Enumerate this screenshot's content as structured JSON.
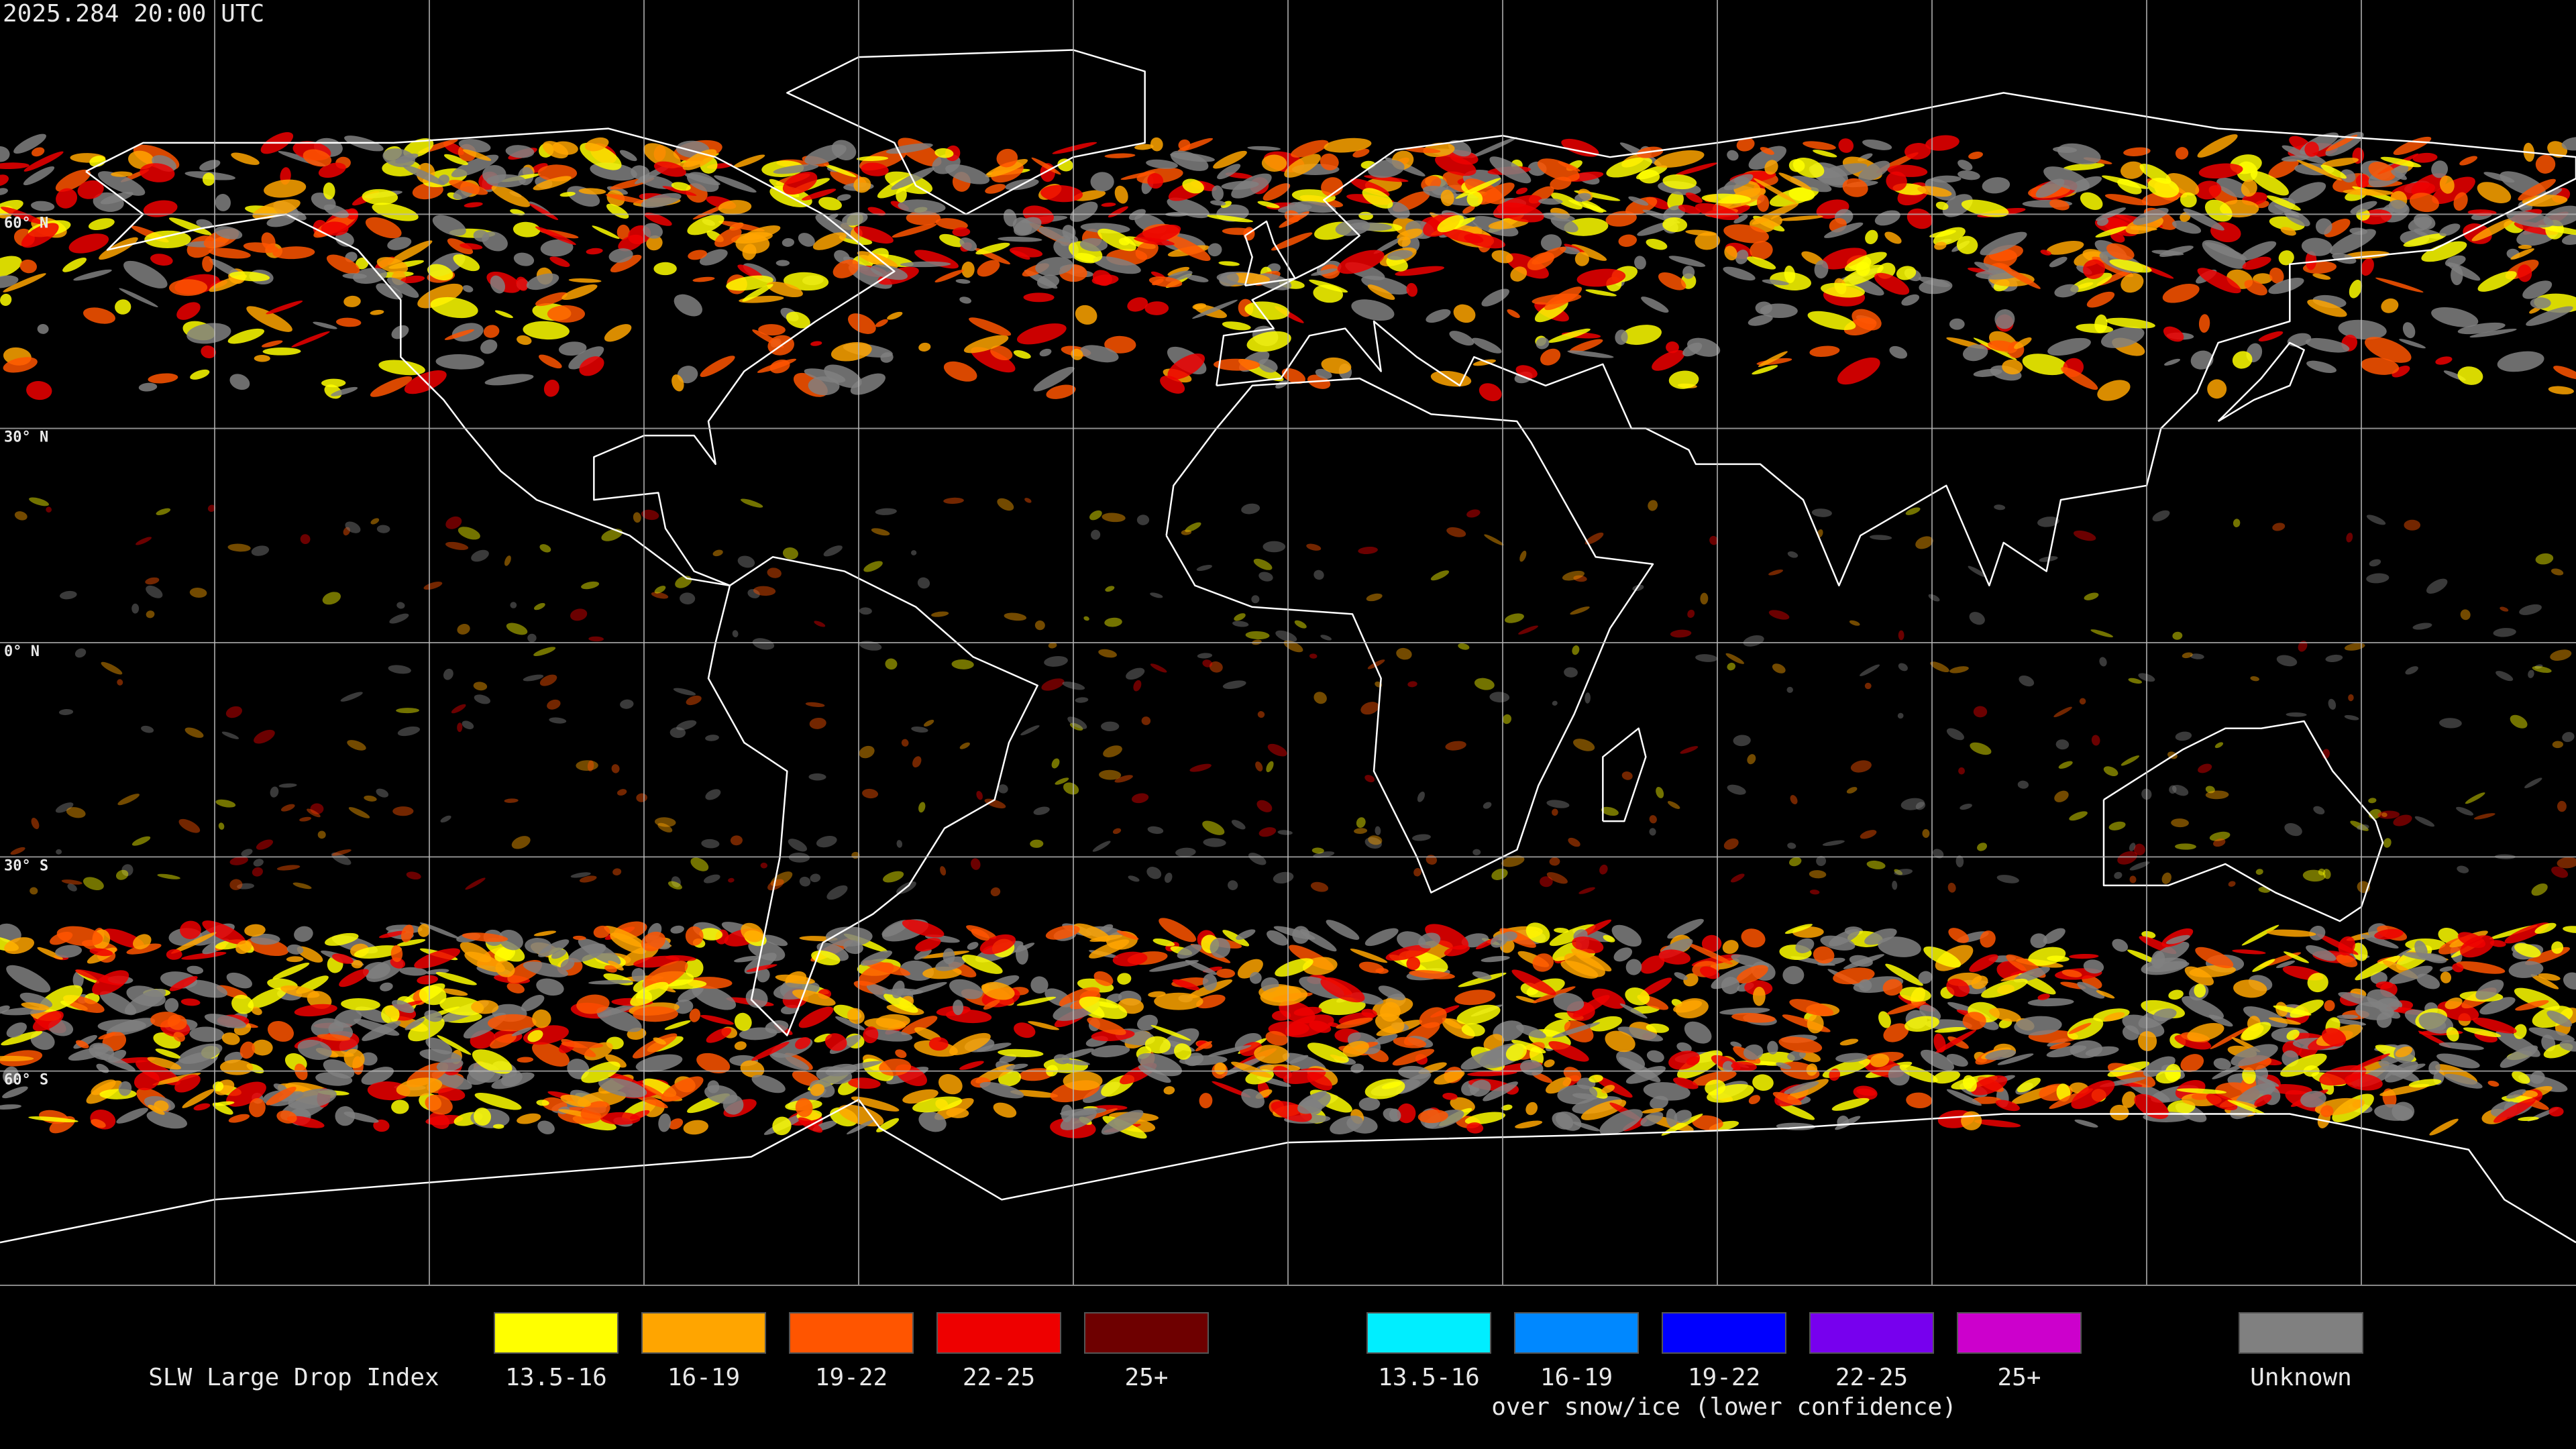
{
  "header": {
    "timestamp": "2025.284 20:00 UTC"
  },
  "map": {
    "lat_labels": [
      "60° N",
      "30° N",
      "0° N",
      "30° S",
      "60° S"
    ]
  },
  "legend": {
    "title": "SLW Large Drop Index",
    "groups": [
      {
        "items": [
          {
            "label": "13.5-16",
            "color": "#ffff00"
          },
          {
            "label": "16-19",
            "color": "#ffa500"
          },
          {
            "label": "19-22",
            "color": "#ff5500"
          },
          {
            "label": "22-25",
            "color": "#ee0000"
          },
          {
            "label": "25+",
            "color": "#6e0000"
          }
        ]
      },
      {
        "items": [
          {
            "label": "13.5-16",
            "color": "#00eeff"
          },
          {
            "label": "16-19",
            "color": "#0088ff"
          },
          {
            "label": "19-22",
            "color": "#0000ff"
          },
          {
            "label": "22-25",
            "color": "#7700ee"
          },
          {
            "label": "25+",
            "color": "#cc00cc"
          }
        ],
        "caption": "over snow/ice (lower confidence)"
      },
      {
        "items": [
          {
            "label": "Unknown",
            "color": "#808080"
          }
        ]
      }
    ]
  }
}
